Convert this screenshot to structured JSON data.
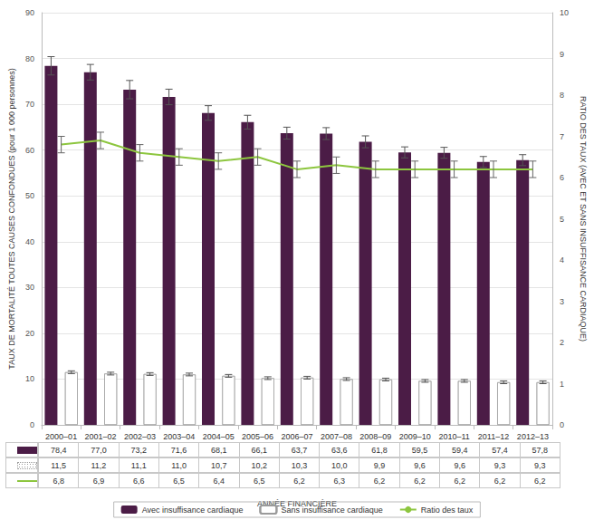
{
  "chart_data": {
    "type": "bar",
    "x_label": "ANNÉE FINANCIÈRE",
    "y_label": "TAUX DE MORTALITÉ TOUTES CAUSES CONFONDUES (pour 1 000 personnes)",
    "y2_label": "RATIO DES TAUX (AVEC ET SANS INSUFFISANCE CARDIAQUE)",
    "categories": [
      "2000–01",
      "2001–02",
      "2002–03",
      "2003–04",
      "2004–05",
      "2005–06",
      "2006–07",
      "2007–08",
      "2008–09",
      "2009–10",
      "2010–11",
      "2011–12",
      "2012–13"
    ],
    "series": [
      {
        "name": "Avec insuffisance cardiaque",
        "type": "bar",
        "color": "#4b1c46",
        "values": [
          78.4,
          77.0,
          73.2,
          71.6,
          68.1,
          66.1,
          63.7,
          63.6,
          61.8,
          59.5,
          59.4,
          57.4,
          57.8
        ],
        "value_labels": [
          "78,4",
          "77,0",
          "73,2",
          "71,6",
          "68,1",
          "66,1",
          "63,7",
          "63,6",
          "61,8",
          "59,5",
          "59,4",
          "57,4",
          "57,8"
        ],
        "errors": [
          2.0,
          1.7,
          2.0,
          1.7,
          1.6,
          1.5,
          1.3,
          1.3,
          1.3,
          1.2,
          1.2,
          1.2,
          1.2
        ]
      },
      {
        "name": "Sans insuffisance cardiaque",
        "type": "bar",
        "color": "#ffffff",
        "values": [
          11.5,
          11.2,
          11.1,
          11.0,
          10.7,
          10.2,
          10.3,
          10.0,
          9.9,
          9.6,
          9.6,
          9.3,
          9.3
        ],
        "value_labels": [
          "11,5",
          "11,2",
          "11,1",
          "11,0",
          "10,7",
          "10,2",
          "10,3",
          "10,0",
          "9,9",
          "9,6",
          "9,6",
          "9,3",
          "9,3"
        ],
        "errors": [
          0.3,
          0.3,
          0.3,
          0.3,
          0.3,
          0.3,
          0.3,
          0.3,
          0.3,
          0.3,
          0.3,
          0.3,
          0.3
        ]
      },
      {
        "name": "Ratio des taux",
        "type": "line",
        "axis": "y2",
        "color": "#8dc63f",
        "values": [
          6.8,
          6.9,
          6.6,
          6.5,
          6.4,
          6.5,
          6.2,
          6.3,
          6.2,
          6.2,
          6.2,
          6.2,
          6.2
        ],
        "value_labels": [
          "6,8",
          "6,9",
          "6,6",
          "6,5",
          "6,4",
          "6,5",
          "6,2",
          "6,3",
          "6,2",
          "6,2",
          "6,2",
          "6,2",
          "6,2"
        ],
        "errors": [
          0.2,
          0.2,
          0.2,
          0.2,
          0.2,
          0.2,
          0.2,
          0.2,
          0.2,
          0.2,
          0.2,
          0.2,
          0.2
        ]
      }
    ],
    "ylim": [
      0,
      90
    ],
    "yticks": [
      0,
      10,
      20,
      30,
      40,
      50,
      60,
      70,
      80,
      90
    ],
    "y2lim": [
      0,
      10
    ],
    "y2ticks": [
      0,
      1,
      2,
      3,
      4,
      5,
      6,
      7,
      8,
      9,
      10
    ],
    "grid": true,
    "legend": "bottom"
  }
}
